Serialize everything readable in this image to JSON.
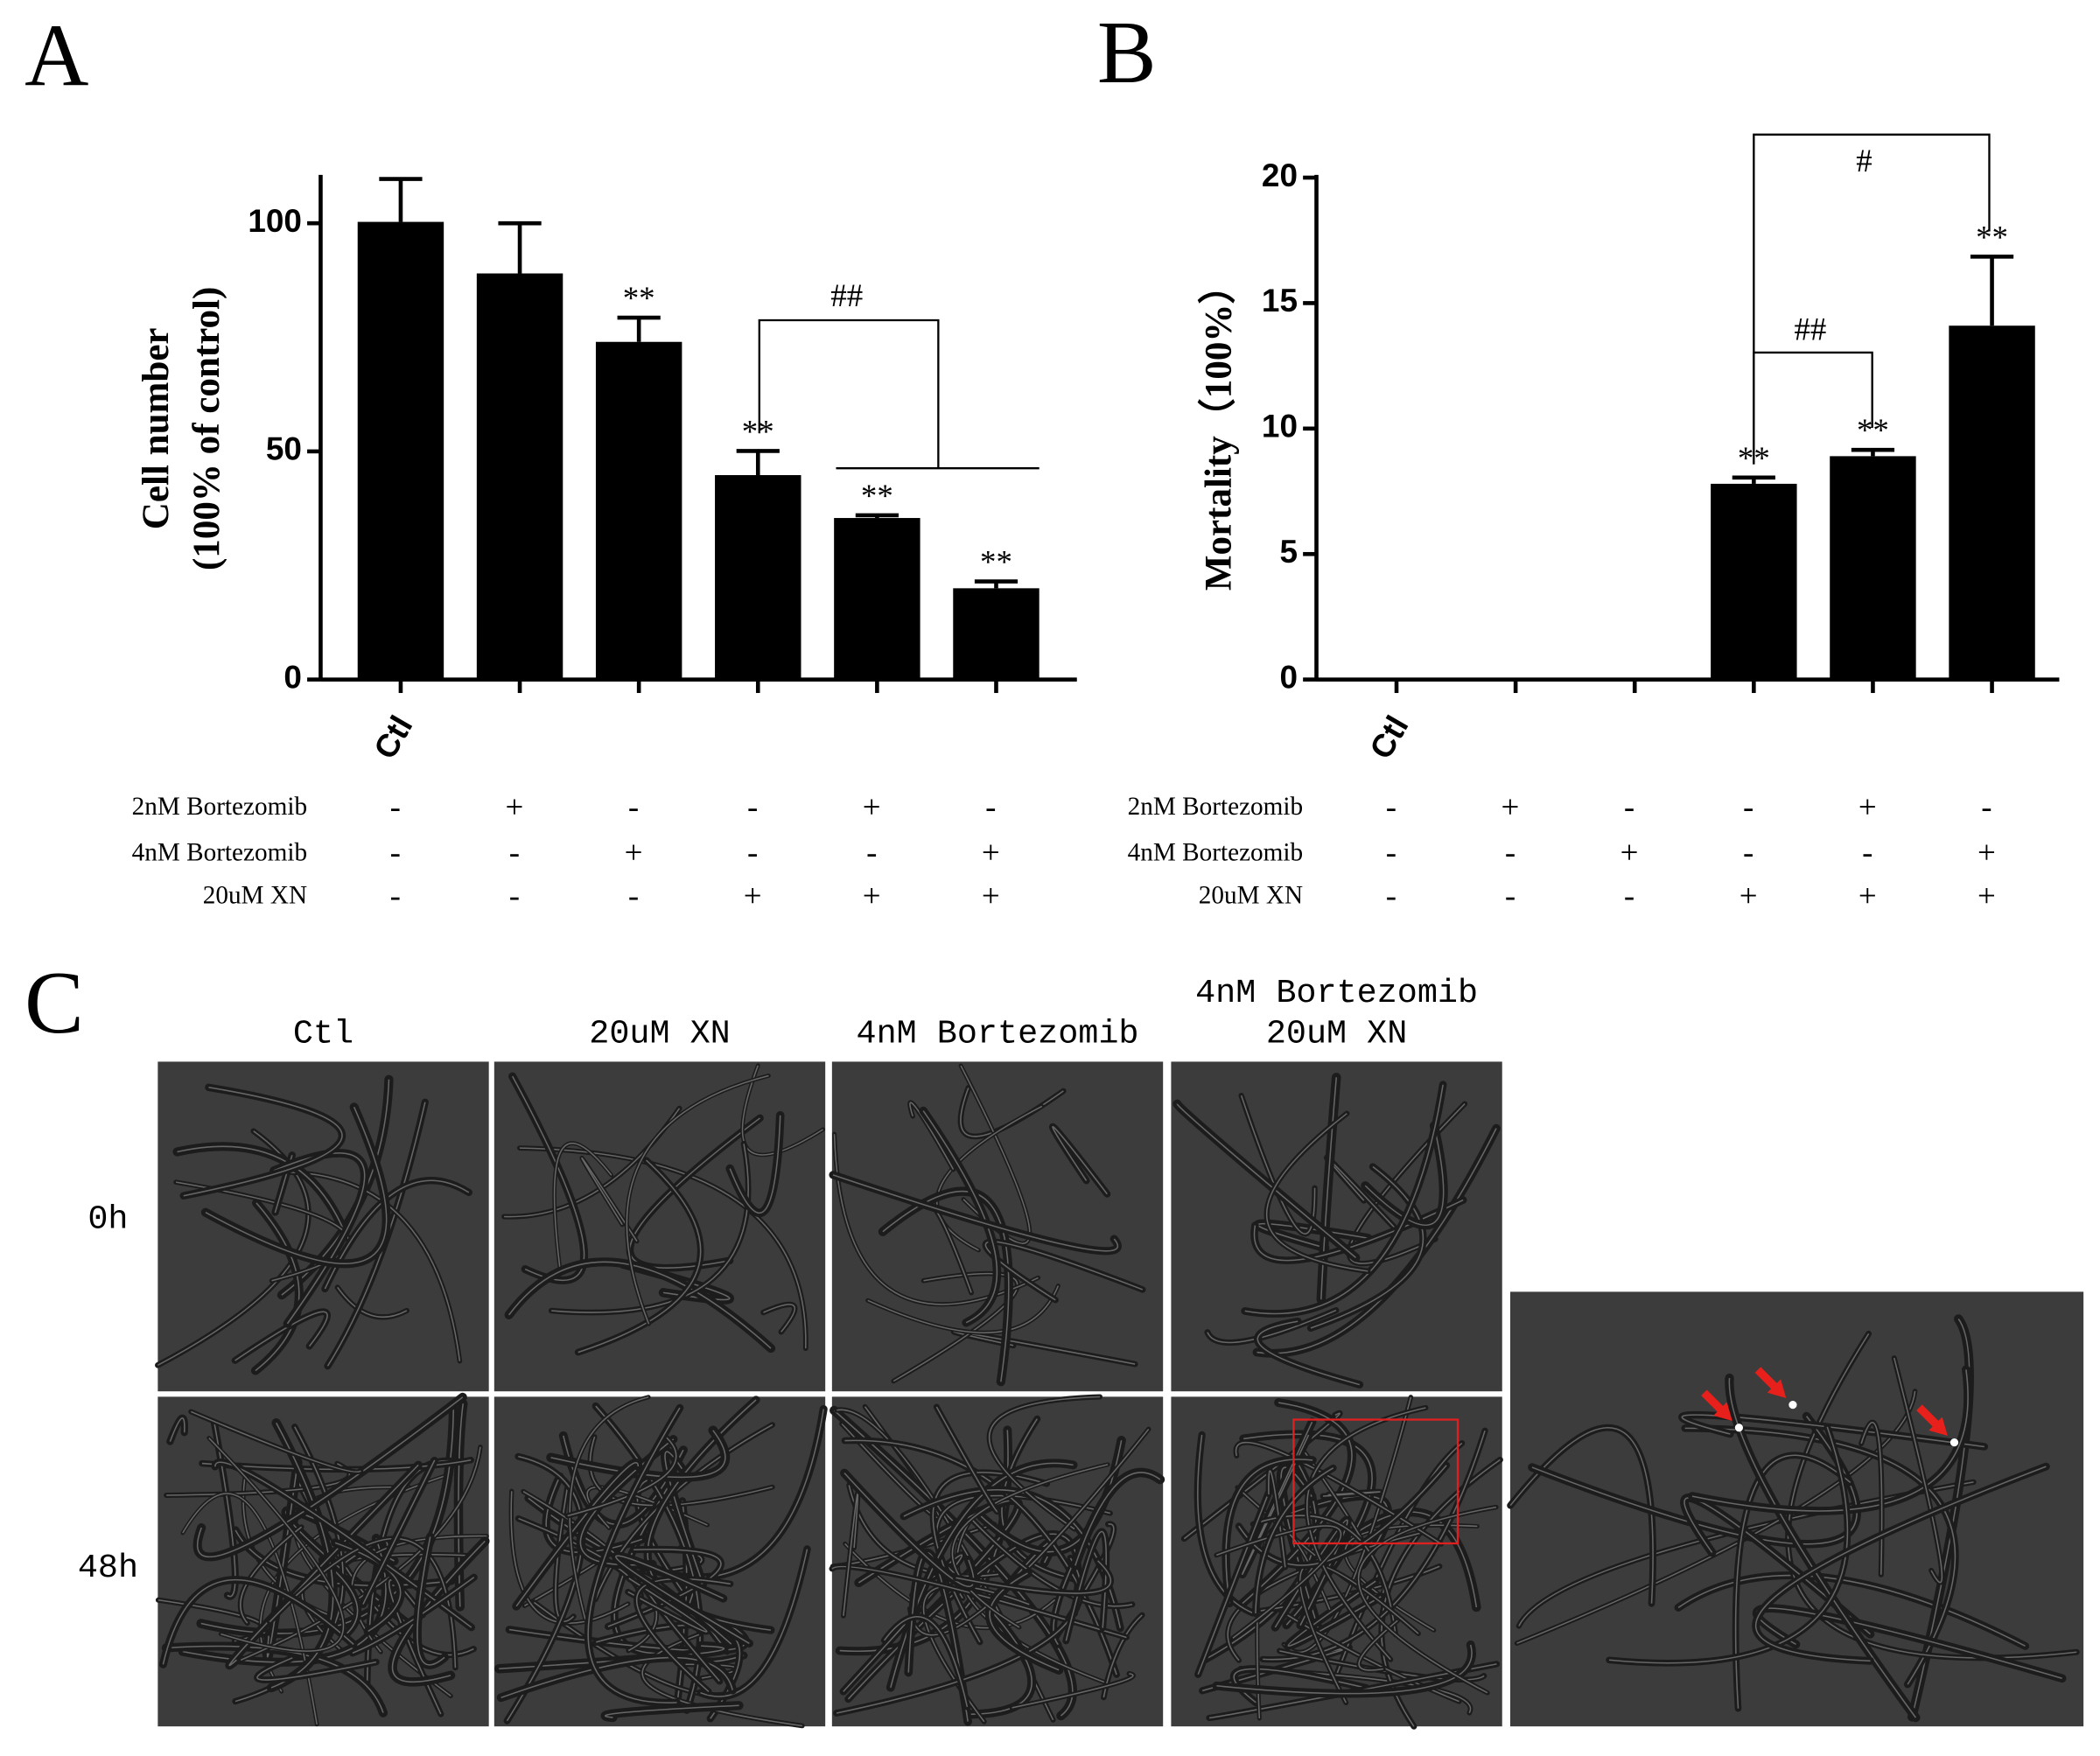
{
  "panel_labels": [
    "A",
    "B",
    "C"
  ],
  "chart_data": [
    {
      "type": "bar",
      "y_label": [
        "Cell number",
        "(100% of control)"
      ],
      "categories": [
        "Ctl",
        null,
        null,
        null,
        null,
        null
      ],
      "values": [
        100.3,
        89,
        74,
        44.8,
        35.4,
        20
      ],
      "errors": [
        9.4,
        11,
        5.3,
        5.3,
        0.6,
        1.5
      ],
      "sig_labels": [
        null,
        null,
        "**",
        "**",
        "**",
        "**"
      ],
      "brackets": [
        "##"
      ],
      "color": "#000000",
      "ylim": [
        0,
        110
      ],
      "yticks": [
        0,
        50,
        100
      ],
      "grid": false,
      "conditions": [
        {
          "label": "2nM Bortezomib",
          "signs": [
            "-",
            "+",
            "-",
            "-",
            "+",
            "-"
          ]
        },
        {
          "label": "4nM Bortezomib",
          "signs": [
            "-",
            "-",
            "+",
            "-",
            "-",
            "+"
          ]
        },
        {
          "label": "20uM XN",
          "signs": [
            "-",
            "-",
            "-",
            "+",
            "+",
            "+"
          ]
        }
      ]
    },
    {
      "type": "bar",
      "y_label": [
        "Mortality（100%）"
      ],
      "categories": [
        "Ctl",
        null,
        null,
        null,
        null,
        null
      ],
      "values": [
        0,
        0,
        0,
        7.8,
        8.9,
        14.1
      ],
      "errors": [
        0,
        0,
        0,
        0.25,
        0.25,
        2.75
      ],
      "sig_labels": [
        null,
        null,
        null,
        "**",
        "**",
        "**"
      ],
      "brackets": [
        "##",
        "#"
      ],
      "color": "#000000",
      "ylim": [
        0,
        20
      ],
      "yticks": [
        0,
        5,
        10,
        15,
        20
      ],
      "grid": false,
      "conditions": [
        {
          "label": "2nM Bortezomib",
          "signs": [
            "-",
            "+",
            "-",
            "-",
            "+",
            "-"
          ]
        },
        {
          "label": "4nM Bortezomib",
          "signs": [
            "-",
            "-",
            "+",
            "-",
            "-",
            "+"
          ]
        },
        {
          "label": "20uM XN",
          "signs": [
            "-",
            "-",
            "-",
            "+",
            "+",
            "+"
          ]
        }
      ]
    }
  ],
  "micrographs": {
    "columns": [
      [
        "Ctl"
      ],
      [
        "20uM XN"
      ],
      [
        "4nM Bortezomib"
      ],
      [
        "4nM Bortezomib",
        "20uM XN"
      ]
    ],
    "rows": [
      "0h",
      "48h"
    ]
  }
}
